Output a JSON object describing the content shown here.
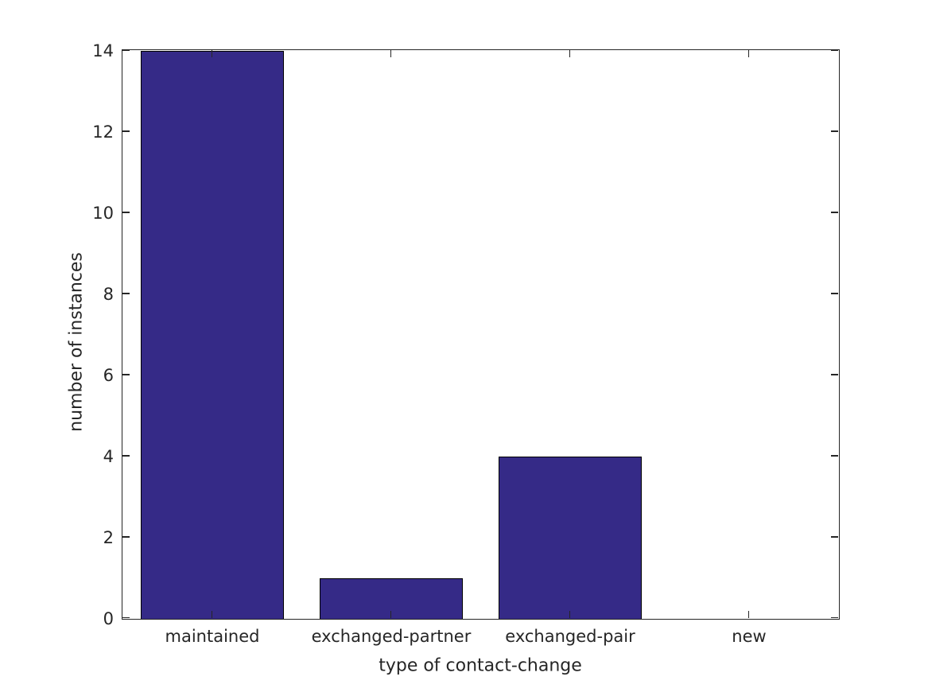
{
  "chart_data": {
    "type": "bar",
    "categories": [
      "maintained",
      "exchanged-partner",
      "exchanged-pair",
      "new"
    ],
    "values": [
      14,
      1,
      4,
      0
    ],
    "xlabel": "type of contact-change",
    "ylabel": "number of instances",
    "ylim": [
      0,
      14
    ],
    "yticks": [
      0,
      2,
      4,
      6,
      8,
      10,
      12,
      14
    ],
    "grid": false,
    "legend": "none",
    "bar_width_fraction": 0.8,
    "colors": {
      "bar_fill": "#352a87",
      "bar_edge": "#000000",
      "axis": "#262626",
      "text": "#262626",
      "background": "#ffffff"
    }
  }
}
